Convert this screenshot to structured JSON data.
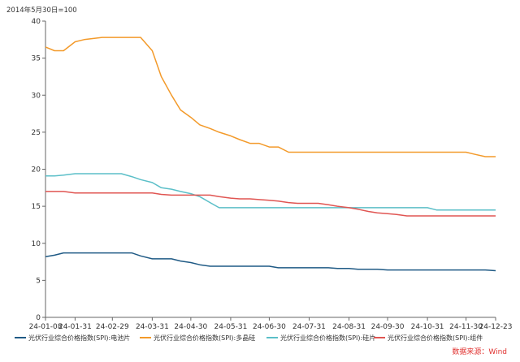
{
  "chart_data": {
    "type": "line",
    "unit_label": "2014年5月30日=100",
    "source": "数据来源：Wind",
    "ylim": [
      0,
      40
    ],
    "yticks": [
      0,
      5,
      10,
      15,
      20,
      25,
      30,
      35,
      40
    ],
    "x_tick_labels": [
      "24-01-08",
      "24-01-31",
      "24-02-29",
      "24-03-31",
      "24-04-30",
      "24-05-31",
      "24-06-30",
      "24-07-31",
      "24-08-31",
      "24-09-30",
      "24-10-31",
      "24-11-30",
      "24-12-23"
    ],
    "x": [
      "2024-01-08",
      "2024-01-15",
      "2024-01-22",
      "2024-01-31",
      "2024-02-07",
      "2024-02-21",
      "2024-02-29",
      "2024-03-07",
      "2024-03-15",
      "2024-03-22",
      "2024-03-31",
      "2024-04-07",
      "2024-04-15",
      "2024-04-22",
      "2024-04-30",
      "2024-05-07",
      "2024-05-15",
      "2024-05-22",
      "2024-05-31",
      "2024-06-07",
      "2024-06-15",
      "2024-06-22",
      "2024-06-30",
      "2024-07-07",
      "2024-07-15",
      "2024-07-22",
      "2024-07-31",
      "2024-08-07",
      "2024-08-15",
      "2024-08-22",
      "2024-08-31",
      "2024-09-07",
      "2024-09-15",
      "2024-09-22",
      "2024-09-30",
      "2024-10-07",
      "2024-10-15",
      "2024-10-22",
      "2024-10-31",
      "2024-11-07",
      "2024-11-15",
      "2024-11-22",
      "2024-11-30",
      "2024-12-07",
      "2024-12-15",
      "2024-12-23"
    ],
    "series": [
      {
        "name": "光伏行业综合价格指数(SPI):电池片",
        "color": "#1f5a85",
        "values": [
          8.2,
          8.4,
          8.7,
          8.7,
          8.7,
          8.7,
          8.7,
          8.7,
          8.7,
          8.3,
          7.9,
          7.9,
          7.9,
          7.6,
          7.4,
          7.1,
          6.9,
          6.9,
          6.9,
          6.9,
          6.9,
          6.9,
          6.9,
          6.7,
          6.7,
          6.7,
          6.7,
          6.7,
          6.7,
          6.6,
          6.6,
          6.5,
          6.5,
          6.5,
          6.4,
          6.4,
          6.4,
          6.4,
          6.4,
          6.4,
          6.4,
          6.4,
          6.4,
          6.4,
          6.4,
          6.3
        ]
      },
      {
        "name": "光伏行业综合价格指数(SPI):多晶硅",
        "color": "#f39a2a",
        "values": [
          36.5,
          36.0,
          36.0,
          37.2,
          37.5,
          37.8,
          37.8,
          37.8,
          37.8,
          37.8,
          36.0,
          32.5,
          30.0,
          28.0,
          27.0,
          26.0,
          25.5,
          25.0,
          24.5,
          24.0,
          23.5,
          23.5,
          23.0,
          23.0,
          22.3,
          22.3,
          22.3,
          22.3,
          22.3,
          22.3,
          22.3,
          22.3,
          22.3,
          22.3,
          22.3,
          22.3,
          22.3,
          22.3,
          22.3,
          22.3,
          22.3,
          22.3,
          22.3,
          22.0,
          21.7,
          21.7
        ]
      },
      {
        "name": "光伏行业综合价格指数(SPI):硅片",
        "color": "#5bbfc8",
        "values": [
          19.1,
          19.1,
          19.2,
          19.4,
          19.4,
          19.4,
          19.4,
          19.4,
          19.0,
          18.6,
          18.2,
          17.5,
          17.3,
          17.0,
          16.7,
          16.3,
          15.5,
          14.8,
          14.8,
          14.8,
          14.8,
          14.8,
          14.8,
          14.8,
          14.8,
          14.8,
          14.8,
          14.8,
          14.8,
          14.8,
          14.8,
          14.8,
          14.8,
          14.8,
          14.8,
          14.8,
          14.8,
          14.8,
          14.8,
          14.5,
          14.5,
          14.5,
          14.5,
          14.5,
          14.5,
          14.5
        ]
      },
      {
        "name": "光伏行业综合价格指数(SPI):组件",
        "color": "#e05552",
        "values": [
          17.0,
          17.0,
          17.0,
          16.8,
          16.8,
          16.8,
          16.8,
          16.8,
          16.8,
          16.8,
          16.8,
          16.6,
          16.5,
          16.5,
          16.5,
          16.5,
          16.5,
          16.3,
          16.1,
          16.0,
          16.0,
          15.9,
          15.8,
          15.7,
          15.5,
          15.4,
          15.4,
          15.4,
          15.2,
          15.0,
          14.8,
          14.6,
          14.3,
          14.1,
          14.0,
          13.9,
          13.7,
          13.7,
          13.7,
          13.7,
          13.7,
          13.7,
          13.7,
          13.7,
          13.7,
          13.7
        ]
      }
    ]
  }
}
